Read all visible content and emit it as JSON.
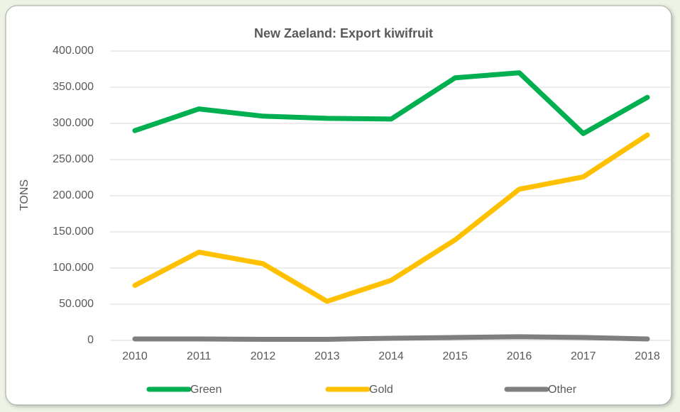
{
  "chart_data": {
    "type": "line",
    "title": "New Zaeland: Export kiwifruit",
    "y_label": "TONS",
    "categories": [
      "2010",
      "2011",
      "2012",
      "2013",
      "2014",
      "2015",
      "2016",
      "2017",
      "2018"
    ],
    "series": [
      {
        "name": "Green",
        "color": "#00b050",
        "values": [
          290000,
          320000,
          310000,
          307000,
          306000,
          363000,
          370000,
          286000,
          336000
        ]
      },
      {
        "name": "Gold",
        "color": "#ffc000",
        "values": [
          76000,
          122000,
          106000,
          54000,
          83000,
          139000,
          209000,
          226000,
          284000
        ]
      },
      {
        "name": "Other",
        "color": "#7f7f7f",
        "values": [
          2000,
          2000,
          1500,
          1500,
          3000,
          4000,
          5000,
          4000,
          2000
        ]
      }
    ],
    "ylim": [
      0,
      400000
    ],
    "yticks": [
      0,
      {
        "value": 50000,
        "label": "50.000"
      },
      {
        "value": 100000,
        "label": "100.000"
      },
      {
        "value": 150000,
        "label": "150.000"
      },
      {
        "value": 200000,
        "label": "200.000"
      },
      {
        "value": 250000,
        "label": "250.000"
      },
      {
        "value": 300000,
        "label": "300.000"
      },
      {
        "value": 350000,
        "label": "350.000"
      },
      {
        "value": 400000,
        "label": "400.000"
      }
    ],
    "grid": true,
    "legend": "bottom"
  }
}
